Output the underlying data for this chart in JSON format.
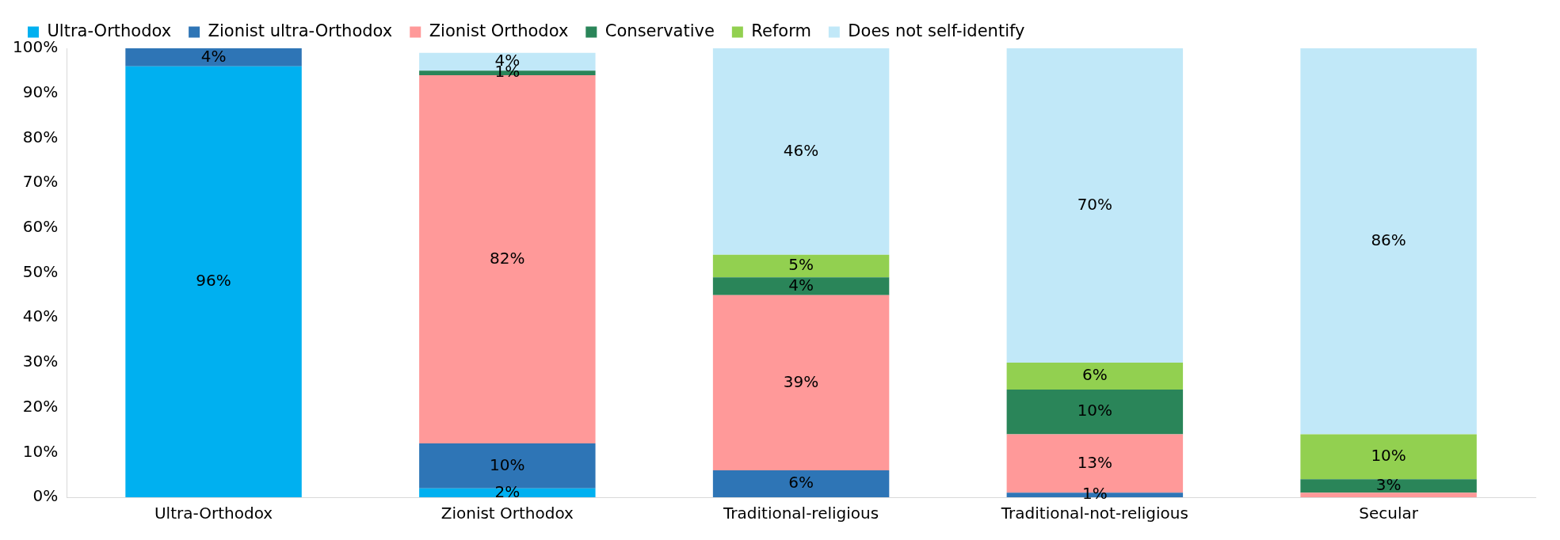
{
  "chart_data": {
    "type": "bar",
    "stacked": true,
    "legend": "top",
    "grid": false,
    "categories": [
      "Ultra-Orthodox",
      "Zionist Orthodox",
      "Traditional-religious",
      "Traditional-not-religious",
      "Secular"
    ],
    "ylim": [
      0,
      100
    ],
    "yticks": [
      {
        "value": 0,
        "label": "0%"
      },
      {
        "value": 10,
        "label": "10%"
      },
      {
        "value": 20,
        "label": "20%"
      },
      {
        "value": 30,
        "label": "30%"
      },
      {
        "value": 40,
        "label": "40%"
      },
      {
        "value": 50,
        "label": "50%"
      },
      {
        "value": 60,
        "label": "60%"
      },
      {
        "value": 70,
        "label": "70%"
      },
      {
        "value": 80,
        "label": "80%"
      },
      {
        "value": 90,
        "label": "90%"
      },
      {
        "value": 100,
        "label": "100%"
      }
    ],
    "series": [
      {
        "name": "Ultra-Orthodox",
        "color": "#00b0f0",
        "values": [
          96,
          2,
          null,
          null,
          null
        ],
        "value_labels": [
          "96%",
          "2%",
          null,
          null,
          null
        ]
      },
      {
        "name": "Zionist ultra-Orthodox",
        "color": "#2e75b6",
        "values": [
          4,
          10,
          6,
          1,
          null
        ],
        "value_labels": [
          "4%",
          "10%",
          "6%",
          "1%",
          null
        ]
      },
      {
        "name": "Zionist Orthodox",
        "color": "#ff9999",
        "values": [
          null,
          82,
          39,
          13,
          1
        ],
        "value_labels": [
          null,
          "82%",
          "39%",
          "13%",
          null
        ]
      },
      {
        "name": "Conservative",
        "color": "#2a8559",
        "values": [
          null,
          1,
          4,
          10,
          3
        ],
        "value_labels": [
          null,
          "1%",
          "4%",
          "10%",
          "3%"
        ]
      },
      {
        "name": "Reform",
        "color": "#92d050",
        "values": [
          null,
          null,
          5,
          6,
          10
        ],
        "value_labels": [
          null,
          null,
          "5%",
          "6%",
          "10%"
        ]
      },
      {
        "name": "Does not self-identify",
        "color": "#c1e8f8",
        "values": [
          null,
          4,
          46,
          70,
          86
        ],
        "value_labels": [
          null,
          "4%",
          "46%",
          "70%",
          "86%"
        ]
      }
    ]
  }
}
